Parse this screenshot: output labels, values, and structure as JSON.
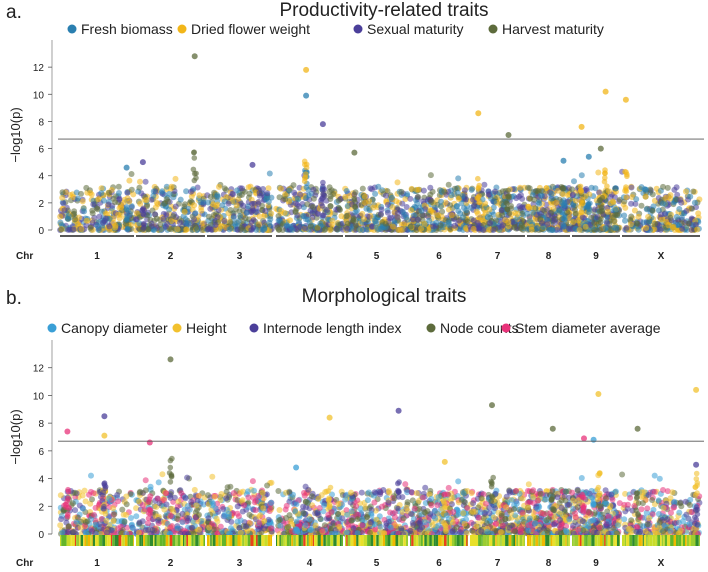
{
  "chart_data": [
    {
      "type": "scatter",
      "panel_label": "a.",
      "title": "Productivity-related traits",
      "ylabel": "−log10(p)",
      "xlabel": "Chr",
      "ylim": [
        0,
        14
      ],
      "yticks": [
        0,
        2,
        4,
        6,
        8,
        10,
        12
      ],
      "threshold": 6.7,
      "categories": [
        "1",
        "2",
        "3",
        "4",
        "5",
        "6",
        "7",
        "8",
        "9",
        "X"
      ],
      "legend_position": "top",
      "series": [
        {
          "name": "Fresh biomass",
          "color": "#2a7fb0",
          "peaks": [
            {
              "chr": "1",
              "pos": 0.9,
              "y": 4.6
            },
            {
              "chr": "4",
              "pos": 0.45,
              "y": 9.9
            },
            {
              "chr": "8",
              "pos": 0.85,
              "y": 5.1
            },
            {
              "chr": "9",
              "pos": 0.35,
              "y": 5.4
            }
          ]
        },
        {
          "name": "Dried flower weight",
          "color": "#f2b619",
          "peaks": [
            {
              "chr": "4",
              "pos": 0.45,
              "y": 11.8
            },
            {
              "chr": "7",
              "pos": 0.15,
              "y": 8.6
            },
            {
              "chr": "9",
              "pos": 0.2,
              "y": 7.6
            },
            {
              "chr": "9",
              "pos": 0.7,
              "y": 10.2
            },
            {
              "chr": "X",
              "pos": 0.05,
              "y": 9.6
            }
          ]
        },
        {
          "name": "Sexual maturity",
          "color": "#4b3f9a",
          "peaks": [
            {
              "chr": "2",
              "pos": 0.1,
              "y": 5.0
            },
            {
              "chr": "4",
              "pos": 0.7,
              "y": 7.8
            },
            {
              "chr": "3",
              "pos": 0.7,
              "y": 4.8
            }
          ]
        },
        {
          "name": "Harvest maturity",
          "color": "#5d6b3c",
          "peaks": [
            {
              "chr": "2",
              "pos": 0.85,
              "y": 12.8
            },
            {
              "chr": "5",
              "pos": 0.15,
              "y": 5.7
            },
            {
              "chr": "7",
              "pos": 0.7,
              "y": 7.0
            },
            {
              "chr": "9",
              "pos": 0.6,
              "y": 6.0
            }
          ]
        }
      ]
    },
    {
      "type": "scatter",
      "panel_label": "b.",
      "title": "Morphological traits",
      "ylabel": "−log10(p)",
      "xlabel": "Chr",
      "ylim": [
        0,
        14
      ],
      "yticks": [
        0,
        2,
        4,
        6,
        8,
        10,
        12
      ],
      "threshold": 6.7,
      "categories": [
        "1",
        "2",
        "3",
        "4",
        "5",
        "6",
        "7",
        "8",
        "9",
        "X"
      ],
      "legend_position": "top",
      "series": [
        {
          "name": "Canopy diameter",
          "color": "#3a9fd6",
          "peaks": [
            {
              "chr": "4",
              "pos": 0.3,
              "y": 4.8
            },
            {
              "chr": "9",
              "pos": 0.45,
              "y": 6.8
            }
          ]
        },
        {
          "name": "Height",
          "color": "#f2c12e",
          "peaks": [
            {
              "chr": "1",
              "pos": 0.6,
              "y": 7.1
            },
            {
              "chr": "4",
              "pos": 0.8,
              "y": 8.4
            },
            {
              "chr": "6",
              "pos": 0.6,
              "y": 5.2
            },
            {
              "chr": "9",
              "pos": 0.55,
              "y": 10.1
            },
            {
              "chr": "X",
              "pos": 0.95,
              "y": 10.4
            }
          ]
        },
        {
          "name": "Internode length index",
          "color": "#4b3f9a",
          "peaks": [
            {
              "chr": "1",
              "pos": 0.6,
              "y": 8.5
            },
            {
              "chr": "5",
              "pos": 0.85,
              "y": 8.9
            },
            {
              "chr": "X",
              "pos": 0.95,
              "y": 5.0
            }
          ]
        },
        {
          "name": "Node counts",
          "color": "#5d6b3c",
          "peaks": [
            {
              "chr": "2",
              "pos": 0.5,
              "y": 12.6
            },
            {
              "chr": "7",
              "pos": 0.4,
              "y": 9.3
            },
            {
              "chr": "8",
              "pos": 0.6,
              "y": 7.6
            },
            {
              "chr": "X",
              "pos": 0.2,
              "y": 7.6
            }
          ]
        },
        {
          "name": "Stem diameter average",
          "color": "#e8337a",
          "peaks": [
            {
              "chr": "1",
              "pos": 0.1,
              "y": 7.4
            },
            {
              "chr": "2",
              "pos": 0.2,
              "y": 6.6
            },
            {
              "chr": "9",
              "pos": 0.25,
              "y": 6.9
            }
          ]
        }
      ]
    }
  ]
}
